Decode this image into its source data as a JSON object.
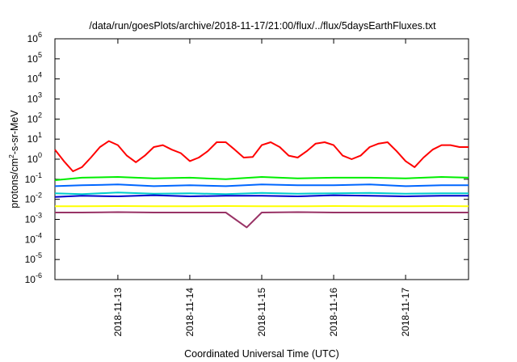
{
  "chart_data": {
    "type": "line",
    "title": "/data/run/goesPlots/archive/2018-11-17/21:00/flux/../flux/5daysEarthFluxes.txt",
    "xlabel": "Coordinated Universal Time (UTC)",
    "ylabel": {
      "prefix": "protons/cm",
      "sup": "2",
      "suffix": "-s-sr-MeV"
    },
    "yscale": "log",
    "ylim": [
      1e-06,
      1000000.0
    ],
    "y_ticks": [
      {
        "base": "10",
        "exp": "6",
        "value": 1000000.0
      },
      {
        "base": "10",
        "exp": "5",
        "value": 100000.0
      },
      {
        "base": "10",
        "exp": "4",
        "value": 10000.0
      },
      {
        "base": "10",
        "exp": "3",
        "value": 1000.0
      },
      {
        "base": "10",
        "exp": "2",
        "value": 100.0
      },
      {
        "base": "10",
        "exp": "1",
        "value": 10.0
      },
      {
        "base": "10",
        "exp": "0",
        "value": 1.0
      },
      {
        "base": "10",
        "exp": "-1",
        "value": 0.1
      },
      {
        "base": "10",
        "exp": "-2",
        "value": 0.01
      },
      {
        "base": "10",
        "exp": "-3",
        "value": 0.001
      },
      {
        "base": "10",
        "exp": "-4",
        "value": 0.0001
      },
      {
        "base": "10",
        "exp": "-5",
        "value": 1e-05
      },
      {
        "base": "10",
        "exp": "-6",
        "value": 1e-06
      }
    ],
    "xlim": [
      "2018-11-12 03:00",
      "2018-11-17 21:00"
    ],
    "x_ticks": [
      "2018-11-13",
      "2018-11-14",
      "2018-11-15",
      "2018-11-16",
      "2018-11-17"
    ],
    "grid": false,
    "legend": "none",
    "series": [
      {
        "color": "#ff0000",
        "x": [
          "2018-11-12 03:00",
          "2018-11-12 06:00",
          "2018-11-12 09:00",
          "2018-11-12 12:00",
          "2018-11-12 15:00",
          "2018-11-12 18:00",
          "2018-11-12 21:00",
          "2018-11-13 00:00",
          "2018-11-13 03:00",
          "2018-11-13 06:00",
          "2018-11-13 09:00",
          "2018-11-13 12:00",
          "2018-11-13 15:00",
          "2018-11-13 18:00",
          "2018-11-13 21:00",
          "2018-11-14 00:00",
          "2018-11-14 03:00",
          "2018-11-14 06:00",
          "2018-11-14 09:00",
          "2018-11-14 12:00",
          "2018-11-14 15:00",
          "2018-11-14 18:00",
          "2018-11-14 21:00",
          "2018-11-15 00:00",
          "2018-11-15 03:00",
          "2018-11-15 06:00",
          "2018-11-15 09:00",
          "2018-11-15 12:00",
          "2018-11-15 15:00",
          "2018-11-15 18:00",
          "2018-11-15 21:00",
          "2018-11-16 00:00",
          "2018-11-16 03:00",
          "2018-11-16 06:00",
          "2018-11-16 09:00",
          "2018-11-16 12:00",
          "2018-11-16 15:00",
          "2018-11-16 18:00",
          "2018-11-16 21:00",
          "2018-11-17 00:00",
          "2018-11-17 03:00",
          "2018-11-17 06:00",
          "2018-11-17 09:00",
          "2018-11-17 12:00",
          "2018-11-17 15:00",
          "2018-11-17 18:00",
          "2018-11-17 21:00"
        ],
        "y": [
          3,
          0.8,
          0.25,
          0.4,
          1.2,
          4,
          8,
          5,
          1.5,
          0.7,
          1.5,
          4,
          5,
          3,
          2,
          0.8,
          1.2,
          2.5,
          7,
          7,
          3,
          1.2,
          1.3,
          5,
          7,
          4,
          1.5,
          1.2,
          2.5,
          6,
          7,
          5,
          1.5,
          1.0,
          1.5,
          4,
          6,
          7,
          2.5,
          0.8,
          0.4,
          1.2,
          3,
          5,
          5,
          4,
          4
        ]
      },
      {
        "color": "#00ee00",
        "x": [
          "2018-11-12 03:00",
          "2018-11-12 12:00",
          "2018-11-13 00:00",
          "2018-11-13 12:00",
          "2018-11-14 00:00",
          "2018-11-14 12:00",
          "2018-11-15 00:00",
          "2018-11-15 12:00",
          "2018-11-16 00:00",
          "2018-11-16 12:00",
          "2018-11-17 00:00",
          "2018-11-17 12:00",
          "2018-11-17 21:00"
        ],
        "y": [
          0.09,
          0.12,
          0.13,
          0.11,
          0.12,
          0.1,
          0.13,
          0.11,
          0.12,
          0.12,
          0.11,
          0.13,
          0.12
        ]
      },
      {
        "color": "#0066ff",
        "x": [
          "2018-11-12 03:00",
          "2018-11-12 12:00",
          "2018-11-13 00:00",
          "2018-11-13 12:00",
          "2018-11-14 00:00",
          "2018-11-14 12:00",
          "2018-11-15 00:00",
          "2018-11-15 12:00",
          "2018-11-16 00:00",
          "2018-11-16 12:00",
          "2018-11-17 00:00",
          "2018-11-17 12:00",
          "2018-11-17 21:00"
        ],
        "y": [
          0.045,
          0.05,
          0.055,
          0.045,
          0.05,
          0.045,
          0.055,
          0.05,
          0.05,
          0.055,
          0.045,
          0.05,
          0.05
        ]
      },
      {
        "color": "#00cccc",
        "x": [
          "2018-11-12 03:00",
          "2018-11-12 12:00",
          "2018-11-13 00:00",
          "2018-11-13 12:00",
          "2018-11-14 00:00",
          "2018-11-14 12:00",
          "2018-11-15 00:00",
          "2018-11-15 12:00",
          "2018-11-16 00:00",
          "2018-11-16 12:00",
          "2018-11-17 00:00",
          "2018-11-17 12:00",
          "2018-11-17 21:00"
        ],
        "y": [
          0.02,
          0.018,
          0.022,
          0.019,
          0.02,
          0.018,
          0.021,
          0.019,
          0.02,
          0.021,
          0.019,
          0.02,
          0.02
        ]
      },
      {
        "color": "#0000cc",
        "x": [
          "2018-11-12 03:00",
          "2018-11-12 12:00",
          "2018-11-13 00:00",
          "2018-11-13 12:00",
          "2018-11-14 00:00",
          "2018-11-14 12:00",
          "2018-11-15 00:00",
          "2018-11-15 12:00",
          "2018-11-16 00:00",
          "2018-11-16 12:00",
          "2018-11-17 00:00",
          "2018-11-17 12:00",
          "2018-11-17 21:00"
        ],
        "y": [
          0.013,
          0.015,
          0.014,
          0.016,
          0.014,
          0.015,
          0.015,
          0.014,
          0.016,
          0.015,
          0.014,
          0.015,
          0.015
        ]
      },
      {
        "color": "#ffff00",
        "x": [
          "2018-11-12 03:00",
          "2018-11-12 12:00",
          "2018-11-13 00:00",
          "2018-11-13 12:00",
          "2018-11-14 00:00",
          "2018-11-14 12:00",
          "2018-11-15 00:00",
          "2018-11-15 12:00",
          "2018-11-16 00:00",
          "2018-11-16 12:00",
          "2018-11-17 00:00",
          "2018-11-17 12:00",
          "2018-11-17 21:00"
        ],
        "y": [
          0.0045,
          0.0045,
          0.0046,
          0.0045,
          0.0045,
          0.0046,
          0.0045,
          0.0045,
          0.0046,
          0.0045,
          0.0045,
          0.0046,
          0.0045
        ]
      },
      {
        "color": "#993366",
        "x": [
          "2018-11-12 03:00",
          "2018-11-12 12:00",
          "2018-11-13 00:00",
          "2018-11-13 12:00",
          "2018-11-14 00:00",
          "2018-11-14 12:00",
          "2018-11-14 19:00",
          "2018-11-15 00:00",
          "2018-11-15 12:00",
          "2018-11-16 00:00",
          "2018-11-16 12:00",
          "2018-11-17 00:00",
          "2018-11-17 12:00",
          "2018-11-17 21:00"
        ],
        "y": [
          0.0022,
          0.0022,
          0.0023,
          0.0022,
          0.0022,
          0.0022,
          0.0004,
          0.0022,
          0.0023,
          0.0022,
          0.0022,
          0.0022,
          0.0022,
          0.0022
        ]
      }
    ]
  }
}
